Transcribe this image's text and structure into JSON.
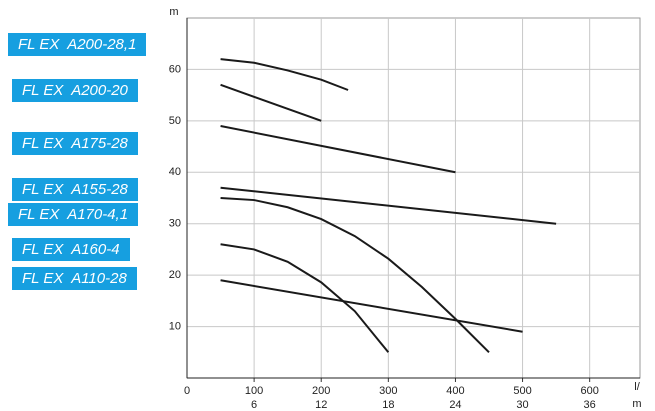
{
  "chart_data": {
    "type": "line",
    "y_label": "m",
    "x_label": [
      "l/",
      "m"
    ],
    "xlim": [
      0,
      675
    ],
    "xticks": [
      0,
      100,
      200,
      300,
      400,
      500,
      600
    ],
    "x2lim": [
      0,
      40.5
    ],
    "x2ticks": [
      6,
      12,
      18,
      24,
      30,
      36
    ],
    "ylim": [
      0,
      70
    ],
    "yticks": [
      10,
      20,
      30,
      40,
      50,
      60
    ],
    "grid": true,
    "label_color": "#169fe0",
    "series": [
      {
        "name": "FL EX  A200-28,1",
        "color": "#1a1a1a",
        "x": [
          50,
          100,
          150,
          200,
          240
        ],
        "values": [
          62,
          61.3,
          59.8,
          58,
          56
        ]
      },
      {
        "name": "FL EX  A200-20",
        "color": "#1a1a1a",
        "x": [
          50,
          200
        ],
        "values": [
          57,
          50
        ]
      },
      {
        "name": "FL EX  A175-28",
        "color": "#1a1a1a",
        "x": [
          50,
          400
        ],
        "values": [
          49,
          40
        ]
      },
      {
        "name": "FL EX  A155-28",
        "color": "#1a1a1a",
        "x": [
          50,
          550
        ],
        "values": [
          37,
          30
        ]
      },
      {
        "name": "FL EX  A170-4,1",
        "color": "#1a1a1a",
        "x": [
          50,
          100,
          150,
          200,
          250,
          300,
          350,
          400,
          450
        ],
        "values": [
          35,
          34.6,
          33.2,
          30.9,
          27.6,
          23.2,
          17.7,
          11.5,
          5
        ]
      },
      {
        "name": "FL EX  A160-4",
        "color": "#1a1a1a",
        "x": [
          50,
          100,
          150,
          200,
          250,
          300
        ],
        "values": [
          26,
          25,
          22.6,
          18.6,
          13,
          5
        ]
      },
      {
        "name": "FL EX  A110-28",
        "color": "#1a1a1a",
        "x": [
          50,
          500
        ],
        "values": [
          19,
          9
        ]
      }
    ]
  }
}
